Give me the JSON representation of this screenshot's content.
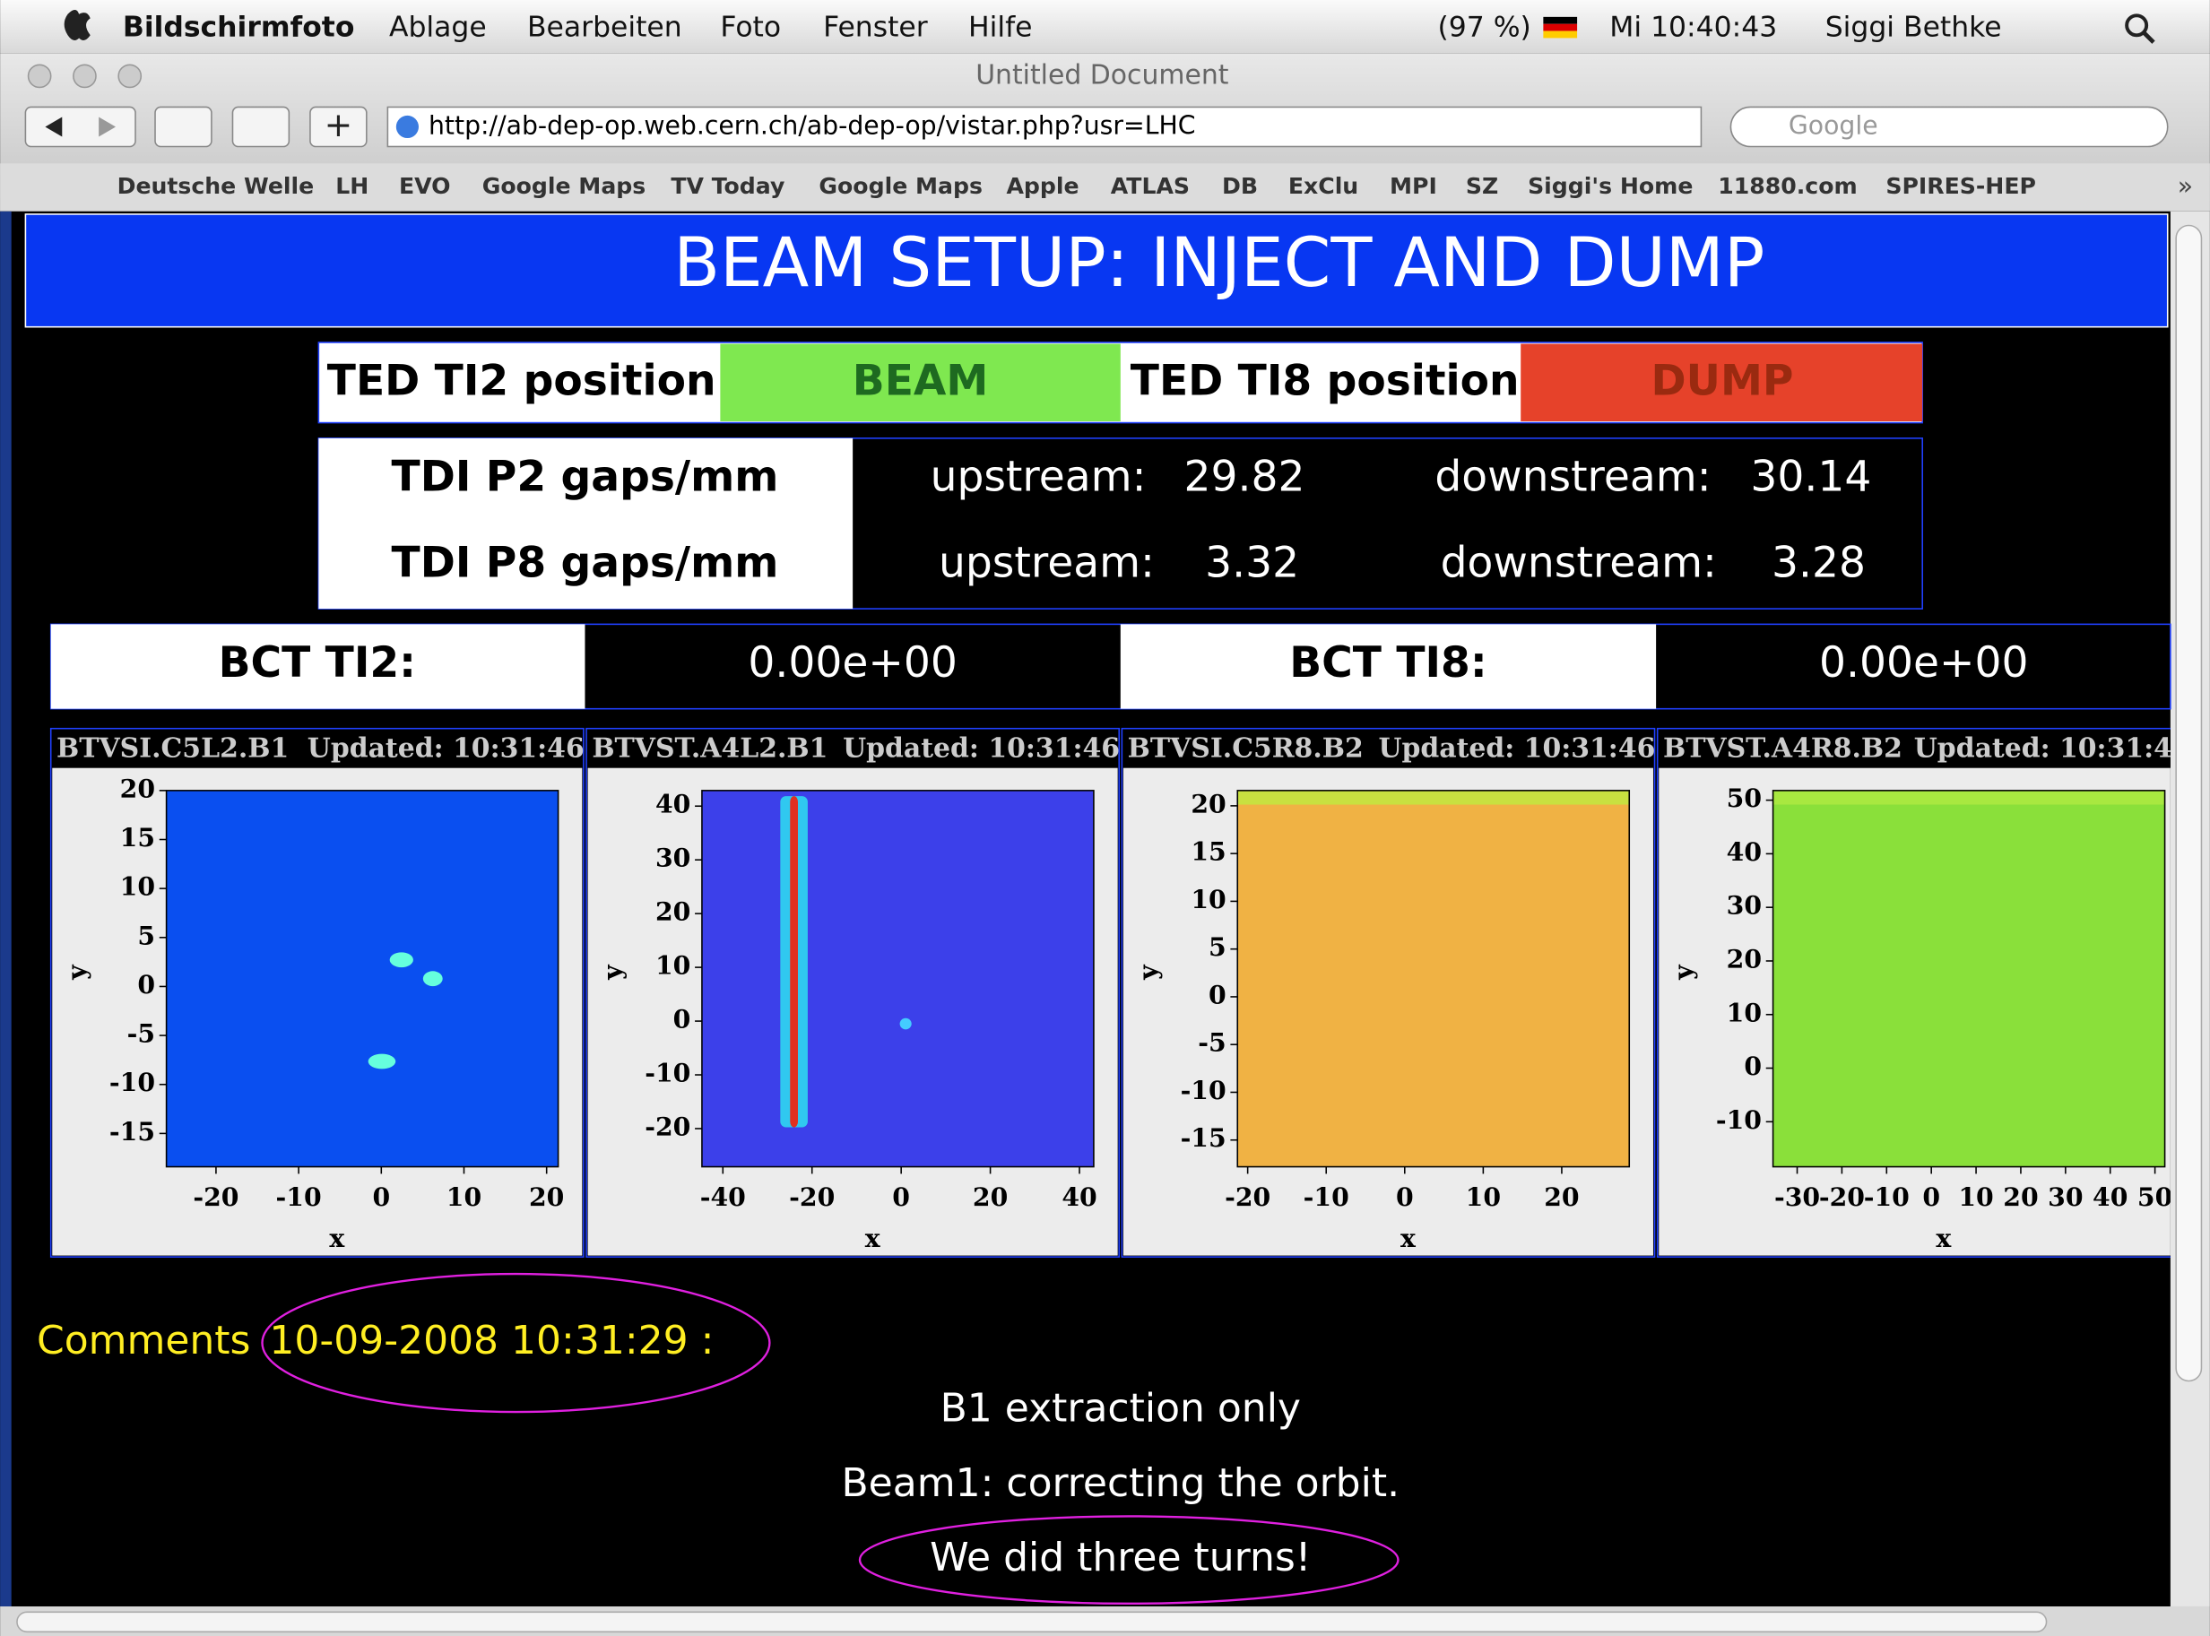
{
  "menubar": {
    "app": "Bildschirmfoto",
    "items": [
      "Ablage",
      "Bearbeiten",
      "Foto",
      "Fenster",
      "Hilfe"
    ],
    "battery": "(97 %)",
    "clock": "Mi 10:40:43",
    "user": "Siggi Bethke"
  },
  "window": {
    "title": "Untitled Document",
    "url": "http://ab-dep-op.web.cern.ch/ab-dep-op/vistar.php?usr=LHC",
    "search": "Google",
    "bookmarks": [
      "Deutsche Welle",
      "LH",
      "EVO",
      "Google Maps",
      "TV Today",
      "Google Maps",
      "Apple",
      "ATLAS",
      "DB",
      "ExClu",
      "MPI",
      "SZ",
      "Siggi's Home",
      "11880.com",
      "SPIRES-HEP"
    ]
  },
  "page": {
    "title": "BEAM SETUP: INJECT AND DUMP",
    "ted": [
      {
        "label": "TED TI2 position:",
        "state": "BEAM"
      },
      {
        "label": "TED TI8 position:",
        "state": "DUMP"
      }
    ],
    "tdi": [
      {
        "label": "TDI P2 gaps/mm",
        "upstream_label": "upstream:",
        "upstream": 29.82,
        "downstream_label": "downstream:",
        "downstream": 30.14
      },
      {
        "label": "TDI P8 gaps/mm",
        "upstream_label": "upstream:",
        "upstream": 3.32,
        "downstream_label": "downstream:",
        "downstream": 3.28
      }
    ],
    "bct": [
      {
        "label": "BCT TI2:",
        "value": "0.00e+00"
      },
      {
        "label": "BCT TI8:",
        "value": "0.00e+00"
      }
    ],
    "screens": [
      {
        "name": "BTVSI.C5L2.B1",
        "updated": "Updated: 10:31:46",
        "xlabel": "x",
        "ylabel": "y",
        "xlim": [
          -26,
          21.4
        ],
        "ylim": [
          -18.4,
          20
        ],
        "xticks": [
          -20,
          -10,
          0,
          10,
          20
        ],
        "yticks": [
          20,
          15,
          10,
          5,
          0,
          -5,
          -10,
          -15
        ]
      },
      {
        "name": "BTVST.A4L2.B1",
        "updated": "Updated: 10:31:46",
        "xlabel": "x",
        "ylabel": "y",
        "xlim": [
          -44.7,
          43.2
        ],
        "ylim": [
          -27.1,
          42.9
        ],
        "xticks": [
          -40,
          -20,
          0,
          20,
          40
        ],
        "yticks": [
          40,
          30,
          20,
          10,
          0,
          -10,
          -20
        ]
      },
      {
        "name": "BTVSI.C5R8.B2",
        "updated": "Updated: 10:31:46",
        "xlabel": "x",
        "ylabel": "y",
        "xlim": [
          -21.3,
          28.6
        ],
        "ylim": [
          -17.8,
          21.6
        ],
        "xticks": [
          -20,
          -10,
          0,
          10,
          20
        ],
        "yticks": [
          20,
          15,
          10,
          5,
          0,
          -5,
          -10,
          -15
        ]
      },
      {
        "name": "BTVST.A4R8.B2",
        "updated": "Updated: 10:31:4",
        "xlabel": "x",
        "ylabel": "y",
        "xlim": [
          -35.4,
          52.2
        ],
        "ylim": [
          -18.4,
          51.8
        ],
        "xticks": [
          -30,
          -20,
          -10,
          0,
          10,
          20,
          30,
          40,
          50
        ],
        "yticks": [
          50,
          40,
          30,
          20,
          10,
          0,
          -10
        ]
      }
    ],
    "comments": {
      "label": "Comments",
      "timestamp": "10-09-2008 10:31:29 :",
      "lines": [
        "B1 extraction only",
        "Beam1: correcting the orbit.",
        "We did three turns!"
      ]
    }
  }
}
